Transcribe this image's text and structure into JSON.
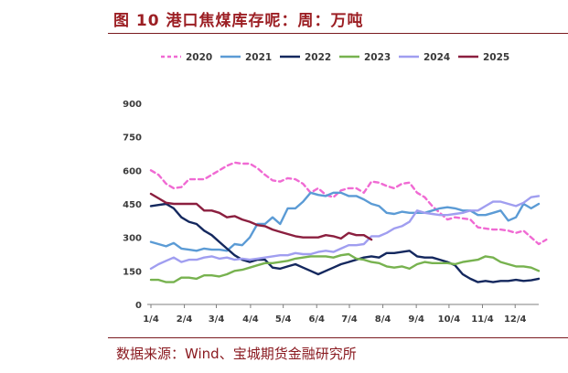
{
  "figure": {
    "title": "图 10 港口焦煤库存呢：周：万吨",
    "source": "数据来源：Wind、宝城期货金融研究所"
  },
  "chart_data": {
    "type": "line",
    "title": "图 10 港口焦煤库存呢：周：万吨",
    "xlabel": "",
    "ylabel": "",
    "ylim": [
      0,
      900
    ],
    "yticks": [
      0,
      150,
      300,
      450,
      600,
      750,
      900
    ],
    "xlim": [
      1,
      52
    ],
    "x_ticks": [
      {
        "week": 1,
        "label": "1/4"
      },
      {
        "week": 5.4,
        "label": "2/4"
      },
      {
        "week": 9.6,
        "label": "3/4"
      },
      {
        "week": 14.1,
        "label": "4/4"
      },
      {
        "week": 18.4,
        "label": "5/4"
      },
      {
        "week": 22.8,
        "label": "6/4"
      },
      {
        "week": 27.1,
        "label": "7/4"
      },
      {
        "week": 31.5,
        "label": "8/4"
      },
      {
        "week": 35.9,
        "label": "9/4"
      },
      {
        "week": 40.2,
        "label": "10/4"
      },
      {
        "week": 44.6,
        "label": "11/4"
      },
      {
        "week": 48.9,
        "label": "12/4"
      }
    ],
    "legend_position": "top",
    "series": [
      {
        "name": "2020",
        "color": "#f06ad3",
        "dash": true,
        "values": [
          600,
          580,
          540,
          520,
          525,
          560,
          560,
          560,
          580,
          600,
          620,
          635,
          630,
          630,
          610,
          580,
          555,
          550,
          565,
          560,
          540,
          500,
          520,
          490,
          480,
          510,
          520,
          520,
          500,
          550,
          545,
          530,
          520,
          540,
          545,
          500,
          480,
          440,
          410,
          380,
          390,
          385,
          380,
          345,
          340,
          335,
          335,
          330,
          320,
          330,
          300,
          270,
          290
        ]
      },
      {
        "name": "2021",
        "color": "#5b9bd5",
        "dash": false,
        "values": [
          280,
          270,
          260,
          275,
          250,
          245,
          240,
          250,
          245,
          245,
          240,
          270,
          265,
          300,
          360,
          360,
          390,
          360,
          430,
          430,
          460,
          500,
          490,
          485,
          500,
          500,
          485,
          485,
          470,
          450,
          440,
          410,
          405,
          415,
          410,
          410,
          410,
          420,
          430,
          435,
          430,
          420,
          420,
          400,
          400,
          410,
          420,
          375,
          390,
          450,
          430,
          450
        ]
      },
      {
        "name": "2022",
        "color": "#14285e",
        "dash": false,
        "values": [
          440,
          445,
          450,
          430,
          390,
          370,
          360,
          330,
          310,
          280,
          250,
          220,
          200,
          190,
          200,
          200,
          165,
          160,
          170,
          180,
          165,
          150,
          135,
          150,
          165,
          180,
          190,
          200,
          210,
          215,
          210,
          230,
          230,
          235,
          240,
          215,
          210,
          210,
          200,
          190,
          175,
          135,
          115,
          100,
          105,
          100,
          105,
          105,
          110,
          105,
          108,
          115
        ]
      },
      {
        "name": "2023",
        "color": "#77b24f",
        "dash": false,
        "values": [
          110,
          110,
          100,
          100,
          120,
          120,
          115,
          130,
          130,
          125,
          135,
          150,
          155,
          165,
          175,
          185,
          185,
          190,
          195,
          205,
          210,
          215,
          215,
          215,
          210,
          220,
          225,
          205,
          200,
          190,
          185,
          170,
          165,
          170,
          160,
          180,
          190,
          185,
          185,
          185,
          180,
          190,
          195,
          200,
          215,
          210,
          190,
          180,
          170,
          170,
          165,
          150
        ]
      },
      {
        "name": "2024",
        "color": "#a09ef0",
        "dash": false,
        "values": [
          160,
          180,
          195,
          210,
          190,
          200,
          200,
          210,
          215,
          205,
          210,
          200,
          205,
          200,
          205,
          210,
          215,
          220,
          220,
          230,
          225,
          225,
          235,
          240,
          235,
          250,
          265,
          265,
          270,
          305,
          305,
          320,
          340,
          350,
          370,
          420,
          410,
          405,
          400,
          400,
          405,
          410,
          420,
          420,
          440,
          460,
          460,
          450,
          440,
          455,
          480,
          485
        ]
      },
      {
        "name": "2025",
        "color": "#8b1f3f",
        "dash": false,
        "values": [
          495,
          475,
          455,
          450,
          450,
          450,
          450,
          420,
          420,
          410,
          390,
          395,
          380,
          370,
          355,
          350,
          335,
          325,
          315,
          305,
          300,
          300,
          300,
          310,
          305,
          295,
          320,
          310,
          310,
          290
        ]
      }
    ]
  }
}
